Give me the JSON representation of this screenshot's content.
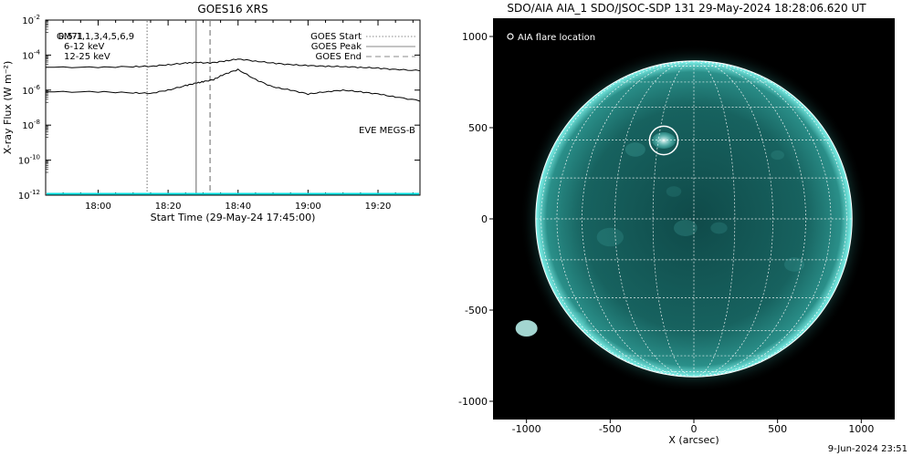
{
  "chart_data": [
    {
      "type": "line",
      "title": "GOES16 XRS",
      "xlabel": "Start Time (29-May-24 17:45:00)",
      "ylabel": "X-ray Flux (W m⁻²)",
      "y_scale": "log",
      "ylim": [
        1e-12,
        0.01
      ],
      "xlim": [
        "17:45",
        "19:32"
      ],
      "x_ticks": [
        "18:00",
        "18:20",
        "18:40",
        "19:00",
        "19:20"
      ],
      "y_ticks": [
        {
          "label": "10",
          "exp": "-2"
        },
        {
          "label": "10",
          "exp": "-4"
        },
        {
          "label": "10",
          "exp": "-6"
        },
        {
          "label": "10",
          "exp": "-8"
        },
        {
          "label": "10",
          "exp": "-10"
        },
        {
          "label": "10",
          "exp": "-12"
        }
      ],
      "band_labels": [
        {
          "text": "0.5-1,1,3,4,5,6,9",
          "color": "#000000"
        },
        {
          "text": "6-12 keV",
          "color": "#cc00cc"
        },
        {
          "text": "12-25 keV",
          "color": "#00cc00"
        }
      ],
      "overlay_label": "GM71",
      "legend": [
        {
          "label": "GOES Start",
          "style": "dotted"
        },
        {
          "label": "GOES Peak",
          "style": "solid"
        },
        {
          "label": "GOES End",
          "style": "dashed"
        }
      ],
      "events": {
        "start": "18:14",
        "peak": "18:28",
        "end": "18:32"
      },
      "eve_label": "EVE MEGS-B",
      "eve_color": "#00e0e0",
      "series": [
        {
          "name": "long",
          "x": [
            "17:45",
            "18:00",
            "18:10",
            "18:15",
            "18:20",
            "18:25",
            "18:28",
            "18:32",
            "18:36",
            "18:40",
            "18:45",
            "18:50",
            "18:55",
            "19:00",
            "19:05",
            "19:10",
            "19:15",
            "19:20",
            "19:25",
            "19:32"
          ],
          "y": [
            2e-05,
            2e-05,
            2.2e-05,
            2.3e-05,
            2.8e-05,
            3.5e-05,
            3.8e-05,
            3.5e-05,
            4.5e-05,
            6e-05,
            4.5e-05,
            3.5e-05,
            2.8e-05,
            2.5e-05,
            2.3e-05,
            2.2e-05,
            2e-05,
            1.8e-05,
            1.5e-05,
            1.3e-05
          ]
        },
        {
          "name": "short",
          "x": [
            "17:45",
            "18:00",
            "18:10",
            "18:15",
            "18:20",
            "18:25",
            "18:28",
            "18:30",
            "18:33",
            "18:36",
            "18:40",
            "18:45",
            "18:50",
            "18:55",
            "19:00",
            "19:05",
            "19:10",
            "19:15",
            "19:20",
            "19:25",
            "19:32"
          ],
          "y": [
            8e-07,
            8e-07,
            7e-07,
            6.5e-07,
            1e-06,
            1.8e-06,
            2.5e-06,
            3e-06,
            4e-06,
            8e-06,
            1.5e-05,
            4e-06,
            1.5e-06,
            1e-06,
            6e-07,
            8e-07,
            1e-06,
            8e-07,
            6e-07,
            4e-07,
            2.5e-07
          ]
        }
      ]
    },
    {
      "type": "image",
      "title": "SDO/AIA AIA_1 SDO/JSOC-SDP 131 29-May-2024 18:28:06.620 UT",
      "xlabel": "X (arcsec)",
      "xlim": [
        -1200,
        1200
      ],
      "ylim": [
        -1100,
        1100
      ],
      "x_ticks": [
        "-1000",
        "-500",
        "0",
        "500",
        "1000"
      ],
      "y_ticks": [
        "1000",
        "500",
        "0",
        "-500",
        "-1000"
      ],
      "legend_text": "AIA flare location",
      "flare_location": {
        "x": -180,
        "y": 430,
        "radius": 85
      },
      "solar_radius": 945,
      "disk_color": "#1d7a78",
      "limb_color": "#7ff4ec"
    }
  ],
  "footer": {
    "timestamp": "9-Jun-2024 23:51"
  }
}
